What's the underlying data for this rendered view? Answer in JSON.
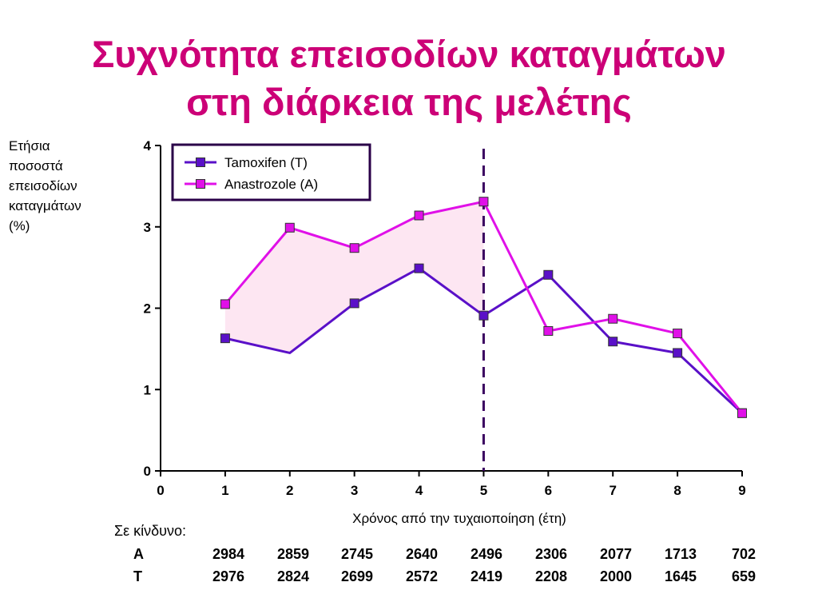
{
  "title": {
    "line1": "Συχνότητα επεισοδίων καταγμάτων",
    "line2": "στη διάρκεια της μελέτης"
  },
  "ylabel_lines": [
    "Ετήσια",
    "ποσοστά",
    "επεισοδίων",
    "καταγμάτων",
    "(%)"
  ],
  "chart_data": {
    "type": "line",
    "xlabel": "Χρόνος από την τυχαιοποίηση (έτη)",
    "ylabel": "Ετήσια ποσοστά επεισοδίων καταγμάτων (%)",
    "xlim": [
      0,
      9
    ],
    "ylim": [
      0,
      4
    ],
    "x_ticks": [
      "0",
      "1",
      "2",
      "3",
      "4",
      "5",
      "6",
      "7",
      "8",
      "9"
    ],
    "y_ticks": [
      "0",
      "1",
      "2",
      "3",
      "4"
    ],
    "grid": false,
    "legend_position": "top-left",
    "series": [
      {
        "name": "Tamoxifen (T)",
        "color": "#5a10c8",
        "x": [
          1,
          2,
          3,
          4,
          5,
          6,
          7,
          8,
          9
        ],
        "values": [
          1.63,
          1.45,
          2.06,
          2.49,
          1.91,
          2.41,
          1.59,
          1.45,
          0.71
        ],
        "markers": [
          true,
          false,
          true,
          true,
          true,
          true,
          true,
          true,
          true
        ]
      },
      {
        "name": "Anastrozole (A)",
        "color": "#e010e8",
        "x": [
          1,
          2,
          3,
          4,
          5,
          6,
          7,
          8,
          9
        ],
        "values": [
          2.05,
          2.99,
          2.74,
          3.14,
          3.31,
          1.72,
          1.87,
          1.69,
          0.71
        ],
        "markers": [
          true,
          true,
          true,
          true,
          true,
          true,
          true,
          true,
          true
        ]
      }
    ],
    "shaded_between_series": {
      "x_from": 1,
      "x_to": 5,
      "color": "#fde6f2"
    },
    "reference_line": {
      "x": 5,
      "style": "dashed",
      "color": "#3a0060"
    }
  },
  "at_risk": {
    "title": "Σε κίνδυνο:",
    "rows": [
      {
        "label": "A",
        "values": [
          "2984",
          "2859",
          "2745",
          "2640",
          "2496",
          "2306",
          "2077",
          "1713",
          "702"
        ]
      },
      {
        "label": "T",
        "values": [
          "2976",
          "2824",
          "2699",
          "2572",
          "2419",
          "2208",
          "2000",
          "1645",
          "659"
        ]
      }
    ]
  }
}
